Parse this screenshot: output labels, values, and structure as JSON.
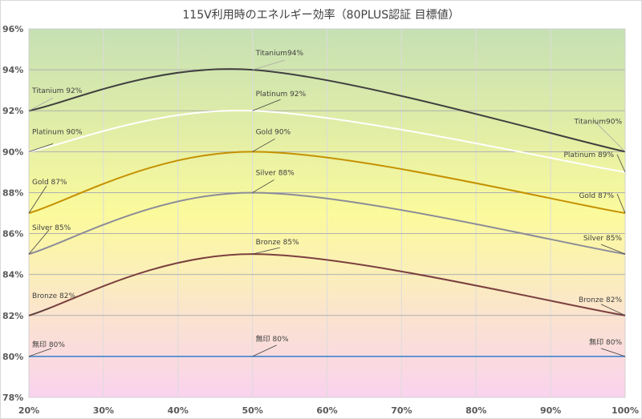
{
  "chart_data": {
    "type": "line",
    "title": "115V利用時のエネルギー効率（80PLUS認証 目標値）",
    "xlabel": "",
    "ylabel": "",
    "x": [
      20,
      50,
      100
    ],
    "x_ticks": [
      "20%",
      "30%",
      "40%",
      "50%",
      "60%",
      "70%",
      "80%",
      "90%",
      "100%"
    ],
    "y_ticks": [
      "78%",
      "80%",
      "82%",
      "84%",
      "86%",
      "88%",
      "90%",
      "92%",
      "94%",
      "96%"
    ],
    "xlim": [
      20,
      100
    ],
    "ylim": [
      78,
      96
    ],
    "grid": true,
    "legend": "none (data labels on points)",
    "smooth": true,
    "series": [
      {
        "name": "Titanium",
        "color": "#404040",
        "values": [
          92,
          94,
          90
        ],
        "labels": [
          "Titanium 92%",
          "Titanium94%",
          "Titanium90%"
        ]
      },
      {
        "name": "Platinum",
        "color": "#ffffff",
        "values": [
          90,
          92,
          89
        ],
        "labels": [
          "Platinum 90%",
          "Platinum 92%",
          "Platinum 89%"
        ]
      },
      {
        "name": "Gold",
        "color": "#c59100",
        "values": [
          87,
          90,
          87
        ],
        "labels": [
          "Gold 87%",
          "Gold 90%",
          "Gold 87%"
        ]
      },
      {
        "name": "Silver",
        "color": "#8c8c98",
        "values": [
          85,
          88,
          85
        ],
        "labels": [
          "Silver 85%",
          "Silver 88%",
          "Silver 85%"
        ]
      },
      {
        "name": "Bronze",
        "color": "#7b3f3f",
        "values": [
          82,
          85,
          82
        ],
        "labels": [
          "Bronze 82%",
          "Bronze 85%",
          "Bronze 82%"
        ]
      },
      {
        "name": "無印",
        "color": "#4a8bd0",
        "values": [
          80,
          80,
          80
        ],
        "labels": [
          "無印 80%",
          "無印 80%",
          "無印 80%"
        ]
      }
    ],
    "background_bands": {
      "top": "#c6e0b4",
      "upper_mid": "#e8f2a8",
      "mid": "#fbfa9c",
      "lower_mid": "#fbe5cc",
      "bottom": "#f9d3ee"
    }
  }
}
